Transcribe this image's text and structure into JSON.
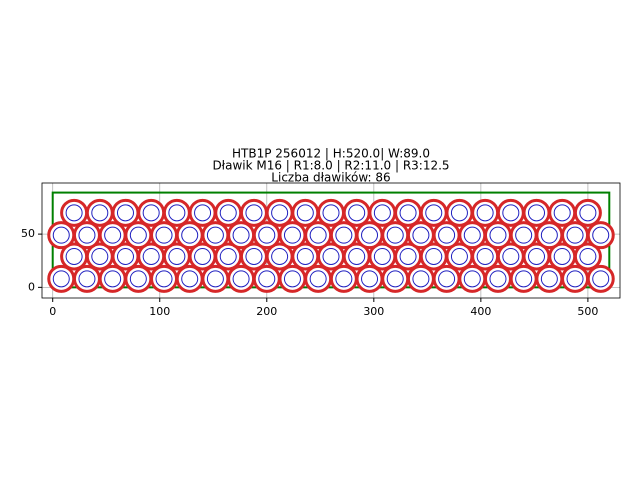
{
  "chart_data": {
    "type": "scatter",
    "title": [
      "HTB1P 256012 | H:520.0| W:89.0",
      "Dławik M16 | R1:8.0 | R2:11.0 | R3:12.5",
      "Liczba dławików: 86"
    ],
    "x": [
      8,
      32,
      56,
      80,
      104,
      128,
      152,
      176,
      200,
      224,
      248,
      272,
      296,
      320,
      344,
      368,
      392,
      416,
      440,
      464,
      488,
      512,
      20,
      44,
      68,
      92,
      116,
      140,
      164,
      188,
      212,
      236,
      260,
      284,
      308,
      332,
      356,
      380,
      404,
      428,
      452,
      476,
      500,
      8,
      32,
      56,
      80,
      104,
      128,
      152,
      176,
      200,
      224,
      248,
      272,
      296,
      320,
      344,
      368,
      392,
      416,
      440,
      464,
      488,
      512,
      20,
      44,
      68,
      92,
      116,
      140,
      164,
      188,
      212,
      236,
      260,
      284,
      308,
      332,
      356,
      380,
      404,
      428,
      452,
      476,
      500
    ],
    "y": [
      8,
      8,
      8,
      8,
      8,
      8,
      8,
      8,
      8,
      8,
      8,
      8,
      8,
      8,
      8,
      8,
      8,
      8,
      8,
      8,
      8,
      8,
      29,
      29,
      29,
      29,
      29,
      29,
      29,
      29,
      29,
      29,
      29,
      29,
      29,
      29,
      29,
      29,
      29,
      29,
      29,
      29,
      29,
      49,
      49,
      49,
      49,
      49,
      49,
      49,
      49,
      49,
      49,
      49,
      49,
      49,
      49,
      49,
      49,
      49,
      49,
      49,
      49,
      49,
      49,
      70,
      70,
      70,
      70,
      70,
      70,
      70,
      70,
      70,
      70,
      70,
      70,
      70,
      70,
      70,
      70,
      70,
      70,
      70,
      70,
      70
    ],
    "outline": {
      "width": 520,
      "height": 89,
      "color": "#008000"
    },
    "outer_color": "#d62728",
    "inner_color": "#1f1fbf",
    "xlim": [
      -10,
      530
    ],
    "ylim": [
      -10,
      98
    ],
    "xticks": [
      0,
      100,
      200,
      300,
      400,
      500
    ],
    "yticks": [
      0,
      50
    ],
    "grid": true
  }
}
